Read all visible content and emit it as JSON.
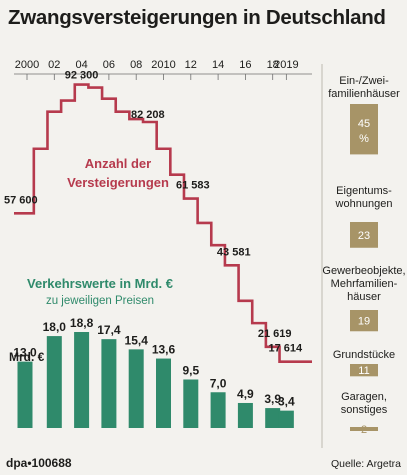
{
  "title": "Zwangsversteigerungen in Deutschland",
  "footer": {
    "left": "dpa•100688",
    "right": "Quelle: Argetra"
  },
  "colors": {
    "line": "#b63a4d",
    "bars": "#2f8a6b",
    "shares": "#a79467",
    "text": "#1d1d1b",
    "background": "#f3f2ee"
  },
  "chart_data": [
    {
      "type": "line",
      "series_label_lines": [
        "Anzahl der",
        "Versteigerungen"
      ],
      "x_ticks": [
        "2000",
        "02",
        "04",
        "06",
        "08",
        "2010",
        "12",
        "14",
        "16",
        "18",
        "2019"
      ],
      "x": [
        2000,
        2001,
        2002,
        2003,
        2004,
        2005,
        2006,
        2007,
        2008,
        2009,
        2010,
        2011,
        2012,
        2013,
        2014,
        2015,
        2016,
        2017,
        2018,
        2019
      ],
      "y": [
        57600,
        75000,
        85000,
        88000,
        92300,
        91500,
        88500,
        85000,
        83000,
        82208,
        75000,
        68000,
        61583,
        55000,
        49000,
        43581,
        34000,
        28000,
        21619,
        17614
      ],
      "labels": [
        {
          "text": "57 600",
          "index": 0
        },
        {
          "text": "92 300",
          "index": 4
        },
        {
          "text": "82 208",
          "index": 9
        },
        {
          "text": "61 583",
          "index": 12
        },
        {
          "text": "43 581",
          "index": 15
        },
        {
          "text": "21 619",
          "index": 18
        },
        {
          "text": "17 614",
          "index": 19
        }
      ],
      "ylim": [
        0,
        100000
      ]
    },
    {
      "type": "bar",
      "title_lines": [
        "Verkehrswerte in Mrd. €",
        "zu jeweiligen Preisen"
      ],
      "unit_label": "Mrd. €",
      "categories": [
        "2000",
        "2002",
        "2004",
        "2006",
        "2008",
        "2010",
        "2012",
        "2014",
        "2016",
        "2018",
        "2019"
      ],
      "values": [
        13.0,
        18.0,
        18.8,
        17.4,
        15.4,
        13.6,
        9.5,
        7.0,
        4.9,
        3.9,
        3.4
      ],
      "value_labels": [
        "13,0",
        "18,0",
        "18,8",
        "17,4",
        "15,4",
        "13,6",
        "9,5",
        "7,0",
        "4,9",
        "3,9",
        "3,4"
      ],
      "ylim": [
        0,
        20
      ]
    },
    {
      "type": "bar",
      "orientation": "proportional boxes",
      "categories": [
        [
          "Ein-/Zwei-",
          "familienhäuser"
        ],
        [
          "Eigentums-",
          "wohnungen"
        ],
        [
          "Gewerbeobjekte,",
          "Mehrfamilien-",
          "häuser"
        ],
        [
          "Grundstücke"
        ],
        [
          "Garagen,",
          "sonstiges"
        ]
      ],
      "values": [
        45,
        23,
        19,
        11,
        2
      ],
      "value_labels": [
        [
          "45",
          "%"
        ],
        [
          "23"
        ],
        [
          "19"
        ],
        [
          "11"
        ],
        [
          "2"
        ]
      ],
      "unit": "%"
    }
  ]
}
